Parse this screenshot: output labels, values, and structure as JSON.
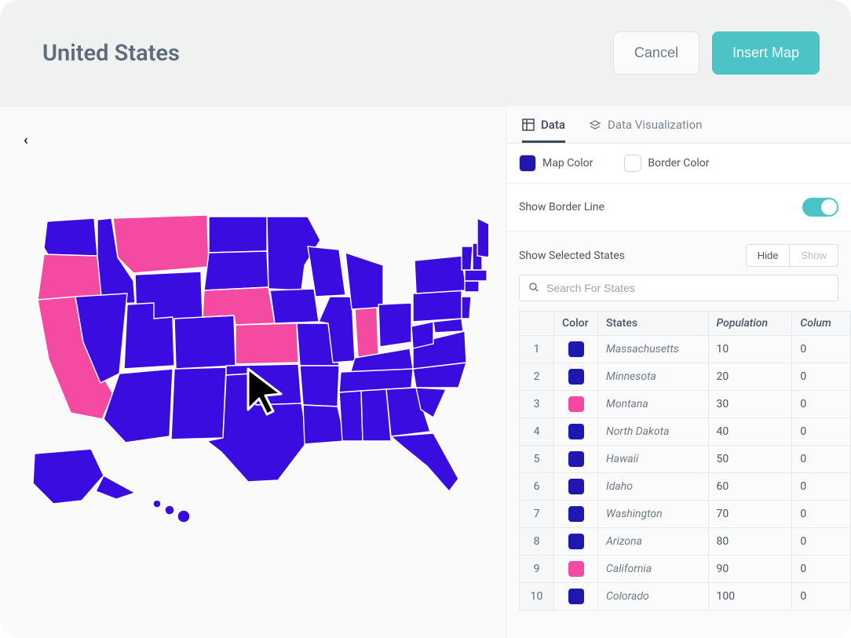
{
  "header": {
    "title": "United States",
    "cancel_label": "Cancel",
    "insert_label": "Insert Map"
  },
  "colors": {
    "primary_blue": "#3a0ce0",
    "highlight_pink": "#f54aa2",
    "accent_teal": "#4cc3c7",
    "border_white": "#ffffff",
    "header_bg": "#f0f2f2",
    "panel_bg": "#fafafa",
    "text_muted": "#6d7a87",
    "state_stroke": "#ffffff"
  },
  "tabs": {
    "data": "Data",
    "visualization": "Data Visualization",
    "active": "data"
  },
  "controls": {
    "map_color_label": "Map Color",
    "map_color_value": "#2017b0",
    "border_color_label": "Border Color",
    "border_color_value": "#ffffff",
    "show_border_label": "Show Border Line",
    "show_border_value": true,
    "show_selected_label": "Show Selected States",
    "hide_label": "Hide",
    "show_label": "Show",
    "search_placeholder": "Search For States"
  },
  "table": {
    "headers": {
      "color": "Color",
      "states": "States",
      "population": "Population",
      "column": "Colum"
    },
    "rows": [
      {
        "n": "1",
        "color": "#2017b0",
        "state": "Massachusetts",
        "population": "10",
        "col": "0"
      },
      {
        "n": "2",
        "color": "#2017b0",
        "state": "Minnesota",
        "population": "20",
        "col": "0"
      },
      {
        "n": "3",
        "color": "#f54aa2",
        "state": "Montana",
        "population": "30",
        "col": "0"
      },
      {
        "n": "4",
        "color": "#2017b0",
        "state": "North Dakota",
        "population": "40",
        "col": "0"
      },
      {
        "n": "5",
        "color": "#2017b0",
        "state": "Hawaii",
        "population": "50",
        "col": "0"
      },
      {
        "n": "6",
        "color": "#2017b0",
        "state": "Idaho",
        "population": "60",
        "col": "0"
      },
      {
        "n": "7",
        "color": "#2017b0",
        "state": "Washington",
        "population": "70",
        "col": "0"
      },
      {
        "n": "8",
        "color": "#2017b0",
        "state": "Arizona",
        "population": "80",
        "col": "0"
      },
      {
        "n": "9",
        "color": "#f54aa2",
        "state": "California",
        "population": "90",
        "col": "0"
      },
      {
        "n": "10",
        "color": "#2017b0",
        "state": "Colorado",
        "population": "100",
        "col": "0"
      }
    ]
  },
  "map": {
    "type": "choropleth",
    "default_fill": "#3a0ce0",
    "highlight_fill": "#f54aa2",
    "stroke": "#ffffff",
    "stroke_width": 1.4,
    "highlighted_states": [
      "California",
      "Oregon",
      "Montana",
      "Nebraska",
      "Kansas",
      "Indiana"
    ]
  }
}
